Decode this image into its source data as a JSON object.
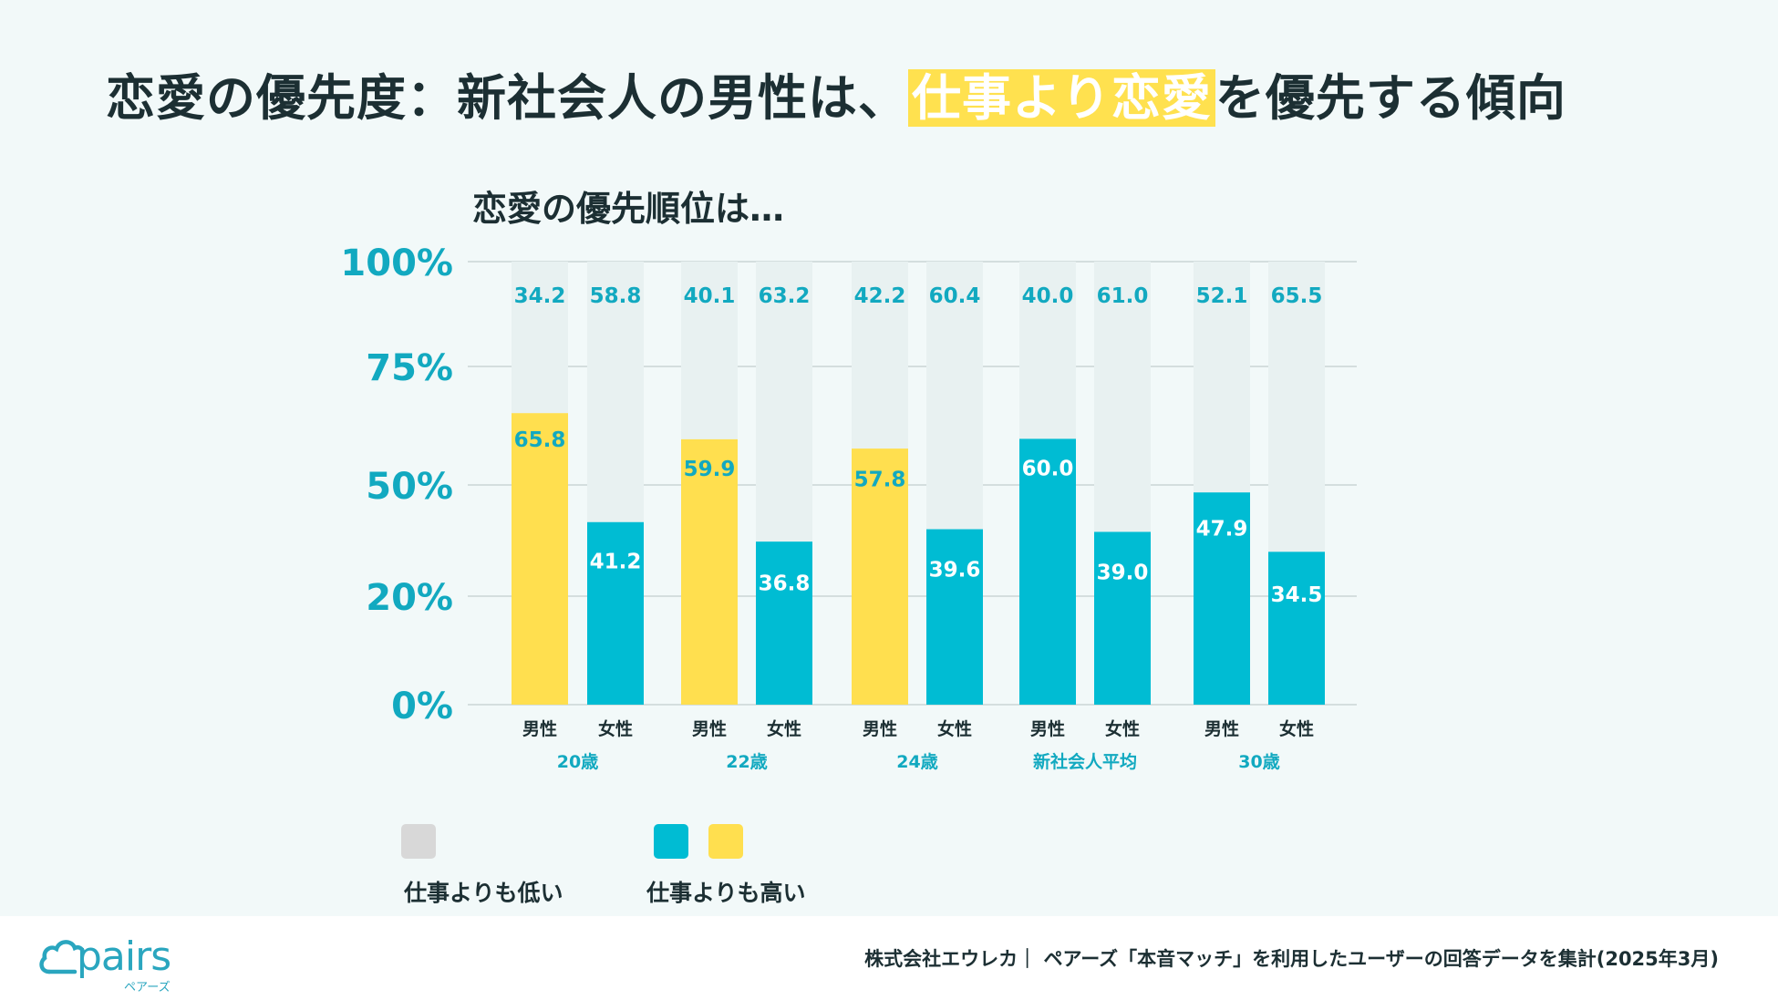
{
  "header": {
    "title_before": "恋愛の優先度：新社会人の男性は、",
    "title_highlight": "仕事より恋愛",
    "title_after": "を優先する傾向"
  },
  "chart_data": {
    "type": "bar",
    "title": "恋愛の優先順位は…",
    "yticks": [
      "0%",
      "20%",
      "50%",
      "75%",
      "100%"
    ],
    "ylim": [
      0,
      100
    ],
    "groups": [
      "20歳",
      "22歳",
      "24歳",
      "新社会人平均",
      "30歳"
    ],
    "genders": [
      "男性",
      "女性"
    ],
    "series": [
      {
        "name": "仕事よりも低い",
        "values": [
          34.2,
          58.8,
          40.1,
          63.2,
          42.2,
          60.4,
          40.0,
          61.0,
          52.1,
          65.5
        ]
      },
      {
        "name": "仕事よりも高い",
        "values": [
          65.8,
          41.2,
          59.9,
          36.8,
          57.8,
          39.6,
          60.0,
          39.0,
          47.9,
          34.5
        ],
        "highlighted": [
          true,
          false,
          true,
          false,
          true,
          false,
          false,
          false,
          false,
          false
        ]
      }
    ],
    "labels_low": [
      "34.2",
      "58.8",
      "40.1",
      "63.2",
      "42.2",
      "60.4",
      "40.0",
      "61.0",
      "52.1",
      "65.5"
    ],
    "labels_high": [
      "65.8",
      "41.2",
      "59.9",
      "36.8",
      "57.8",
      "39.6",
      "60.0",
      "39.0",
      "47.9",
      "34.5"
    ],
    "colors": {
      "low": "#e8f1f1",
      "high": "#00bcd3",
      "highlight": "#ffdf4f",
      "tick": "#12a9c0",
      "grid": "#d4dede"
    }
  },
  "legend": {
    "low_label": "仕事よりも低い",
    "high_label": "仕事よりも高い",
    "low_color": "#d8d8d8",
    "high_color": "#00bcd3",
    "highlight_color": "#ffdf4f"
  },
  "brand": {
    "logo": "pairs",
    "logo_kana": "ペアーズ",
    "logo_icon": "cloud-icon"
  },
  "footer": {
    "source": "株式会社エウレカ｜ ペアーズ「本音マッチ」を利用したユーザーの回答データを集計(2025年3月)"
  }
}
